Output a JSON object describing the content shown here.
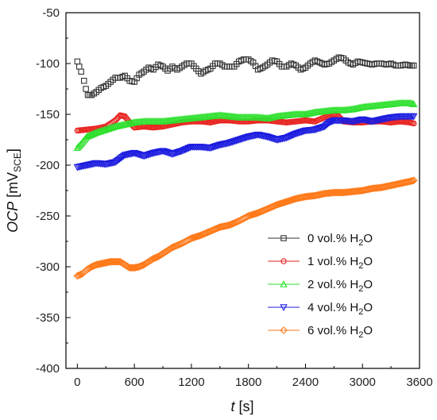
{
  "chart_data": {
    "type": "scatter",
    "xlabel": {
      "symbol": "t",
      "unit": " [s]"
    },
    "ylabel": {
      "symbol": "OCP",
      "unit_open": " [mV",
      "unit_sub": "SCE",
      "unit_close": "]"
    },
    "xlim": [
      -120,
      3600
    ],
    "ylim": [
      -400,
      -50
    ],
    "x_ticks": [
      0,
      600,
      1200,
      1800,
      2400,
      3000,
      3600
    ],
    "y_ticks": [
      -50,
      -100,
      -150,
      -200,
      -250,
      -300,
      -350,
      -400
    ],
    "legend_position": "center-right",
    "series": [
      {
        "name": "0 vol.% H",
        "name_sub": "2",
        "name_tail": "O",
        "color": "#333333",
        "marker": "square",
        "points": [
          [
            0,
            -98
          ],
          [
            40,
            -108
          ],
          [
            70,
            -117
          ],
          [
            90,
            -125
          ],
          [
            110,
            -131
          ],
          [
            150,
            -131
          ],
          [
            200,
            -128
          ],
          [
            250,
            -124
          ],
          [
            300,
            -122
          ],
          [
            350,
            -118
          ],
          [
            400,
            -114
          ],
          [
            450,
            -114
          ],
          [
            500,
            -112
          ],
          [
            550,
            -117
          ],
          [
            600,
            -118
          ],
          [
            650,
            -111
          ],
          [
            700,
            -108
          ],
          [
            750,
            -104
          ],
          [
            800,
            -106
          ],
          [
            850,
            -101
          ],
          [
            900,
            -103
          ],
          [
            950,
            -107
          ],
          [
            1000,
            -103
          ],
          [
            1050,
            -106
          ],
          [
            1100,
            -103
          ],
          [
            1150,
            -100
          ],
          [
            1200,
            -100
          ],
          [
            1250,
            -105
          ],
          [
            1300,
            -110
          ],
          [
            1350,
            -107
          ],
          [
            1400,
            -105
          ],
          [
            1450,
            -100
          ],
          [
            1500,
            -100
          ],
          [
            1550,
            -103
          ],
          [
            1600,
            -103
          ],
          [
            1650,
            -103
          ],
          [
            1700,
            -98
          ],
          [
            1750,
            -96
          ],
          [
            1800,
            -96
          ],
          [
            1850,
            -99
          ],
          [
            1900,
            -106
          ],
          [
            1950,
            -104
          ],
          [
            2000,
            -101
          ],
          [
            2050,
            -97
          ],
          [
            2100,
            -98
          ],
          [
            2150,
            -103
          ],
          [
            2200,
            -103
          ],
          [
            2250,
            -100
          ],
          [
            2300,
            -102
          ],
          [
            2350,
            -106
          ],
          [
            2400,
            -104
          ],
          [
            2450,
            -100
          ],
          [
            2500,
            -97
          ],
          [
            2550,
            -99
          ],
          [
            2600,
            -101
          ],
          [
            2650,
            -100
          ],
          [
            2700,
            -97
          ],
          [
            2750,
            -94
          ],
          [
            2800,
            -95
          ],
          [
            2850,
            -99
          ],
          [
            2900,
            -101
          ],
          [
            2950,
            -98
          ],
          [
            3000,
            -99
          ],
          [
            3050,
            -100
          ],
          [
            3100,
            -101
          ],
          [
            3150,
            -100
          ],
          [
            3200,
            -100
          ],
          [
            3250,
            -101
          ],
          [
            3300,
            -100
          ],
          [
            3350,
            -102
          ],
          [
            3400,
            -102
          ],
          [
            3450,
            -101
          ],
          [
            3500,
            -102
          ],
          [
            3540,
            -102
          ]
        ]
      },
      {
        "name": "1 vol.% H",
        "name_sub": "2",
        "name_tail": "O",
        "color": "#e8231f",
        "marker": "circle",
        "points": [
          [
            0,
            -166
          ],
          [
            100,
            -165
          ],
          [
            200,
            -164
          ],
          [
            300,
            -162
          ],
          [
            400,
            -156
          ],
          [
            450,
            -151
          ],
          [
            500,
            -152
          ],
          [
            550,
            -158
          ],
          [
            600,
            -163
          ],
          [
            700,
            -162
          ],
          [
            800,
            -163
          ],
          [
            900,
            -162
          ],
          [
            1000,
            -160
          ],
          [
            1100,
            -158
          ],
          [
            1200,
            -157
          ],
          [
            1300,
            -157
          ],
          [
            1400,
            -158
          ],
          [
            1500,
            -156
          ],
          [
            1600,
            -156
          ],
          [
            1700,
            -157
          ],
          [
            1800,
            -157
          ],
          [
            1900,
            -156
          ],
          [
            2000,
            -156
          ],
          [
            2100,
            -157
          ],
          [
            2200,
            -158
          ],
          [
            2300,
            -157
          ],
          [
            2400,
            -156
          ],
          [
            2500,
            -157
          ],
          [
            2600,
            -153
          ],
          [
            2700,
            -150
          ],
          [
            2750,
            -152
          ],
          [
            2800,
            -157
          ],
          [
            2900,
            -158
          ],
          [
            3000,
            -158
          ],
          [
            3100,
            -157
          ],
          [
            3200,
            -157
          ],
          [
            3300,
            -158
          ],
          [
            3400,
            -157
          ],
          [
            3500,
            -158
          ],
          [
            3540,
            -159
          ]
        ]
      },
      {
        "name": "2 vol.% H",
        "name_sub": "2",
        "name_tail": "O",
        "color": "#2ee02e",
        "marker": "triangle-up",
        "points": [
          [
            0,
            -183
          ],
          [
            50,
            -178
          ],
          [
            100,
            -172
          ],
          [
            150,
            -170
          ],
          [
            200,
            -168
          ],
          [
            300,
            -165
          ],
          [
            400,
            -162
          ],
          [
            500,
            -160
          ],
          [
            600,
            -158
          ],
          [
            700,
            -157
          ],
          [
            800,
            -157
          ],
          [
            900,
            -157
          ],
          [
            1000,
            -156
          ],
          [
            1100,
            -155
          ],
          [
            1200,
            -154
          ],
          [
            1300,
            -153
          ],
          [
            1400,
            -152
          ],
          [
            1500,
            -151
          ],
          [
            1600,
            -152
          ],
          [
            1700,
            -153
          ],
          [
            1800,
            -153
          ],
          [
            1900,
            -153
          ],
          [
            2000,
            -154
          ],
          [
            2100,
            -152
          ],
          [
            2200,
            -151
          ],
          [
            2300,
            -150
          ],
          [
            2400,
            -150
          ],
          [
            2500,
            -148
          ],
          [
            2600,
            -147
          ],
          [
            2700,
            -146
          ],
          [
            2800,
            -146
          ],
          [
            2900,
            -145
          ],
          [
            3000,
            -143
          ],
          [
            3100,
            -142
          ],
          [
            3200,
            -141
          ],
          [
            3300,
            -140
          ],
          [
            3400,
            -139
          ],
          [
            3500,
            -139
          ],
          [
            3540,
            -140
          ]
        ]
      },
      {
        "name": "4 vol.% H",
        "name_sub": "2",
        "name_tail": "O",
        "color": "#1c1ce0",
        "marker": "triangle-down",
        "points": [
          [
            0,
            -202
          ],
          [
            100,
            -200
          ],
          [
            200,
            -198
          ],
          [
            300,
            -199
          ],
          [
            400,
            -197
          ],
          [
            500,
            -190
          ],
          [
            600,
            -188
          ],
          [
            700,
            -191
          ],
          [
            800,
            -188
          ],
          [
            900,
            -186
          ],
          [
            1000,
            -189
          ],
          [
            1100,
            -186
          ],
          [
            1200,
            -182
          ],
          [
            1300,
            -182
          ],
          [
            1400,
            -183
          ],
          [
            1500,
            -180
          ],
          [
            1600,
            -178
          ],
          [
            1700,
            -175
          ],
          [
            1800,
            -172
          ],
          [
            1900,
            -170
          ],
          [
            2000,
            -172
          ],
          [
            2100,
            -175
          ],
          [
            2200,
            -173
          ],
          [
            2300,
            -169
          ],
          [
            2400,
            -166
          ],
          [
            2500,
            -165
          ],
          [
            2600,
            -162
          ],
          [
            2650,
            -158
          ],
          [
            2700,
            -156
          ],
          [
            2800,
            -156
          ],
          [
            2900,
            -157
          ],
          [
            3000,
            -155
          ],
          [
            3100,
            -157
          ],
          [
            3200,
            -155
          ],
          [
            3300,
            -153
          ],
          [
            3400,
            -152
          ],
          [
            3500,
            -152
          ],
          [
            3540,
            -152
          ]
        ]
      },
      {
        "name": "6 vol.% H",
        "name_sub": "2",
        "name_tail": "O",
        "color": "#ff7a1a",
        "marker": "diamond",
        "points": [
          [
            0,
            -309
          ],
          [
            50,
            -307
          ],
          [
            100,
            -303
          ],
          [
            150,
            -300
          ],
          [
            200,
            -298
          ],
          [
            250,
            -297
          ],
          [
            300,
            -296
          ],
          [
            350,
            -295
          ],
          [
            400,
            -295
          ],
          [
            450,
            -295
          ],
          [
            500,
            -298
          ],
          [
            550,
            -301
          ],
          [
            600,
            -301
          ],
          [
            650,
            -300
          ],
          [
            700,
            -298
          ],
          [
            750,
            -295
          ],
          [
            800,
            -292
          ],
          [
            850,
            -290
          ],
          [
            900,
            -287
          ],
          [
            950,
            -284
          ],
          [
            1000,
            -281
          ],
          [
            1100,
            -277
          ],
          [
            1200,
            -272
          ],
          [
            1300,
            -269
          ],
          [
            1400,
            -265
          ],
          [
            1500,
            -261
          ],
          [
            1600,
            -259
          ],
          [
            1700,
            -255
          ],
          [
            1800,
            -250
          ],
          [
            1900,
            -247
          ],
          [
            2000,
            -243
          ],
          [
            2100,
            -239
          ],
          [
            2200,
            -236
          ],
          [
            2300,
            -233
          ],
          [
            2400,
            -231
          ],
          [
            2500,
            -230
          ],
          [
            2600,
            -228
          ],
          [
            2700,
            -227
          ],
          [
            2800,
            -227
          ],
          [
            2900,
            -226
          ],
          [
            3000,
            -225
          ],
          [
            3100,
            -223
          ],
          [
            3200,
            -222
          ],
          [
            3300,
            -220
          ],
          [
            3400,
            -218
          ],
          [
            3500,
            -216
          ],
          [
            3540,
            -215
          ]
        ]
      }
    ]
  }
}
